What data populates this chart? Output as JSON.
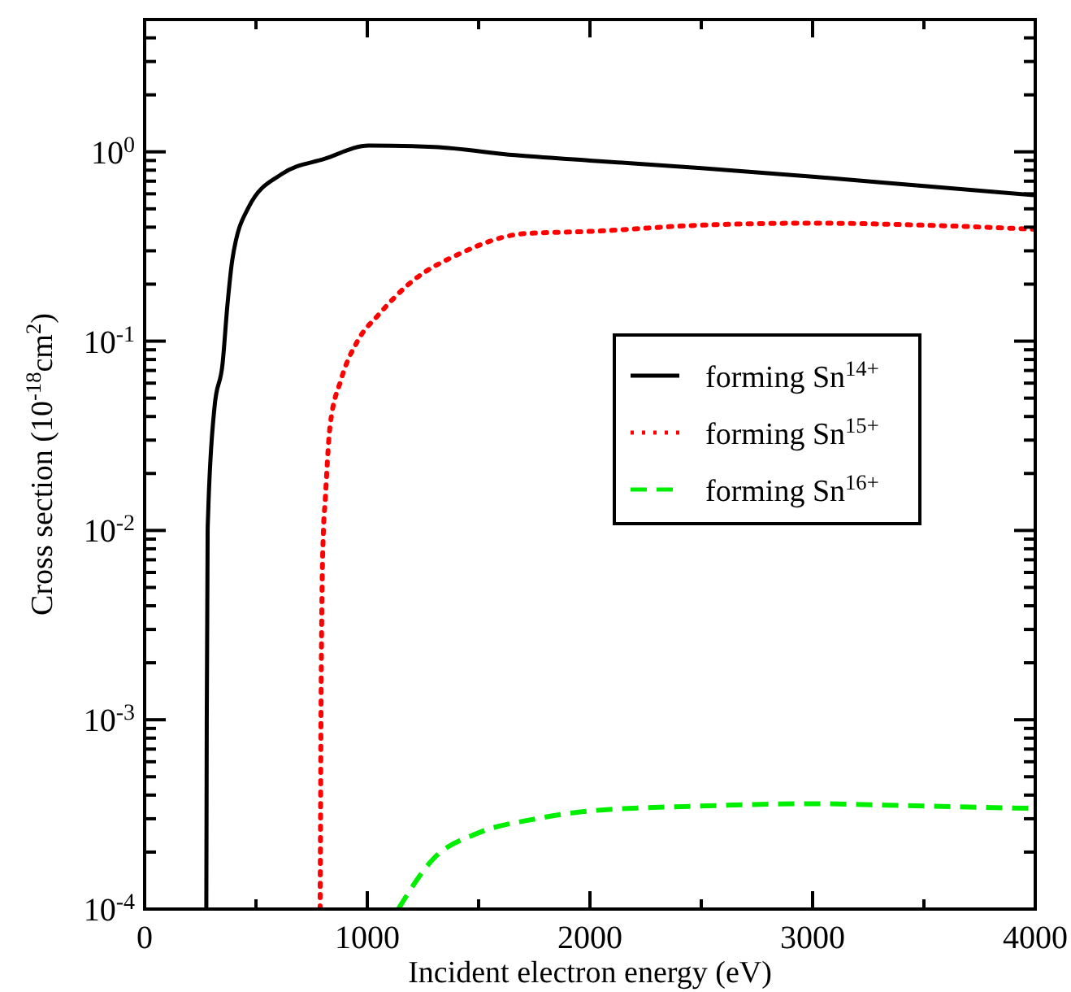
{
  "chart_data": {
    "type": "line",
    "xlabel": "Incident electron energy (eV)",
    "ylabel": "Cross section (10$^{-18}$cm$^{2}$)",
    "log": "y",
    "xlim": [
      0,
      4000
    ],
    "ylim": [
      0.0001,
      5
    ],
    "xticks": [
      0,
      {
        "value": 500,
        "label": null
      },
      1000,
      {
        "value": 1500,
        "label": null
      },
      2000,
      {
        "value": 2500,
        "label": null
      },
      3000,
      {
        "value": 3500,
        "label": null
      },
      4000
    ],
    "yticks": [
      {
        "value": 0.0001,
        "label": "10$^{-4}$"
      },
      {
        "value": 0.0002,
        "label": null
      },
      {
        "value": 0.0003,
        "label": null
      },
      {
        "value": 0.0004,
        "label": null
      },
      {
        "value": 0.0005,
        "label": null
      },
      {
        "value": 0.0006,
        "label": null
      },
      {
        "value": 0.0007,
        "label": null
      },
      {
        "value": 0.0008,
        "label": null
      },
      {
        "value": 0.0009,
        "label": null
      },
      {
        "value": 0.001,
        "label": "10$^{-3}$"
      },
      {
        "value": 0.002,
        "label": null
      },
      {
        "value": 0.003,
        "label": null
      },
      {
        "value": 0.004,
        "label": null
      },
      {
        "value": 0.005,
        "label": null
      },
      {
        "value": 0.006,
        "label": null
      },
      {
        "value": 0.007,
        "label": null
      },
      {
        "value": 0.008,
        "label": null
      },
      {
        "value": 0.009,
        "label": null
      },
      {
        "value": 0.01,
        "label": "10$^{-2}$"
      },
      {
        "value": 0.02,
        "label": null
      },
      {
        "value": 0.03,
        "label": null
      },
      {
        "value": 0.04,
        "label": null
      },
      {
        "value": 0.05,
        "label": null
      },
      {
        "value": 0.06,
        "label": null
      },
      {
        "value": 0.07,
        "label": null
      },
      {
        "value": 0.08,
        "label": null
      },
      {
        "value": 0.09,
        "label": null
      },
      {
        "value": 0.1,
        "label": "10$^{-1}$"
      },
      {
        "value": 0.2,
        "label": null
      },
      {
        "value": 0.3,
        "label": null
      },
      {
        "value": 0.4,
        "label": null
      },
      {
        "value": 0.5,
        "label": null
      },
      {
        "value": 0.6,
        "label": null
      },
      {
        "value": 0.7,
        "label": null
      },
      {
        "value": 0.8,
        "label": null
      },
      {
        "value": 0.9,
        "label": null
      },
      {
        "value": 1,
        "label": "10$^{0}$"
      },
      {
        "value": 2,
        "label": null
      },
      {
        "value": 3,
        "label": null
      },
      {
        "value": 4,
        "label": null
      },
      {
        "value": 5,
        "label": null
      }
    ],
    "grid": false,
    "legend": "right",
    "series": [
      {
        "name": "forming Sn$^{14+}$",
        "color": "#000000",
        "line_style": "solid",
        "x": [
          277,
          279,
          283,
          285,
          314,
          350,
          372,
          394,
          467,
          613,
          810,
          1007,
          1300,
          1664,
          2000,
          2500,
          3000,
          3500,
          4000
        ],
        "values": [
          0.0001,
          0.001,
          0.01,
          0.012,
          0.045,
          0.076,
          0.156,
          0.27,
          0.51,
          0.76,
          0.92,
          1.08,
          1.06,
          0.96,
          0.9,
          0.82,
          0.74,
          0.66,
          0.59
        ]
      },
      {
        "name": "forming Sn$^{15+}$",
        "color": "#ff0000",
        "line_style": "dotted",
        "x": [
          788,
          790,
          792,
          796,
          803,
          810,
          832,
          883,
          956,
          1051,
          1197,
          1416,
          1708,
          2000,
          2500,
          3000,
          3500,
          4000
        ],
        "values": [
          0.0001,
          0.0003,
          0.001,
          0.004,
          0.01,
          0.0138,
          0.035,
          0.063,
          0.1,
          0.138,
          0.205,
          0.29,
          0.37,
          0.38,
          0.41,
          0.42,
          0.41,
          0.39
        ]
      },
      {
        "name": "forming Sn$^{16+}$",
        "color": "#00ee00",
        "line_style": "dashed",
        "x": [
          1139,
          1300,
          1490,
          1760,
          2000,
          2490,
          3000,
          3500,
          4000
        ],
        "values": [
          0.0001,
          0.000186,
          0.00025,
          0.0003,
          0.00033,
          0.00035,
          0.00036,
          0.00035,
          0.00034
        ]
      }
    ]
  }
}
